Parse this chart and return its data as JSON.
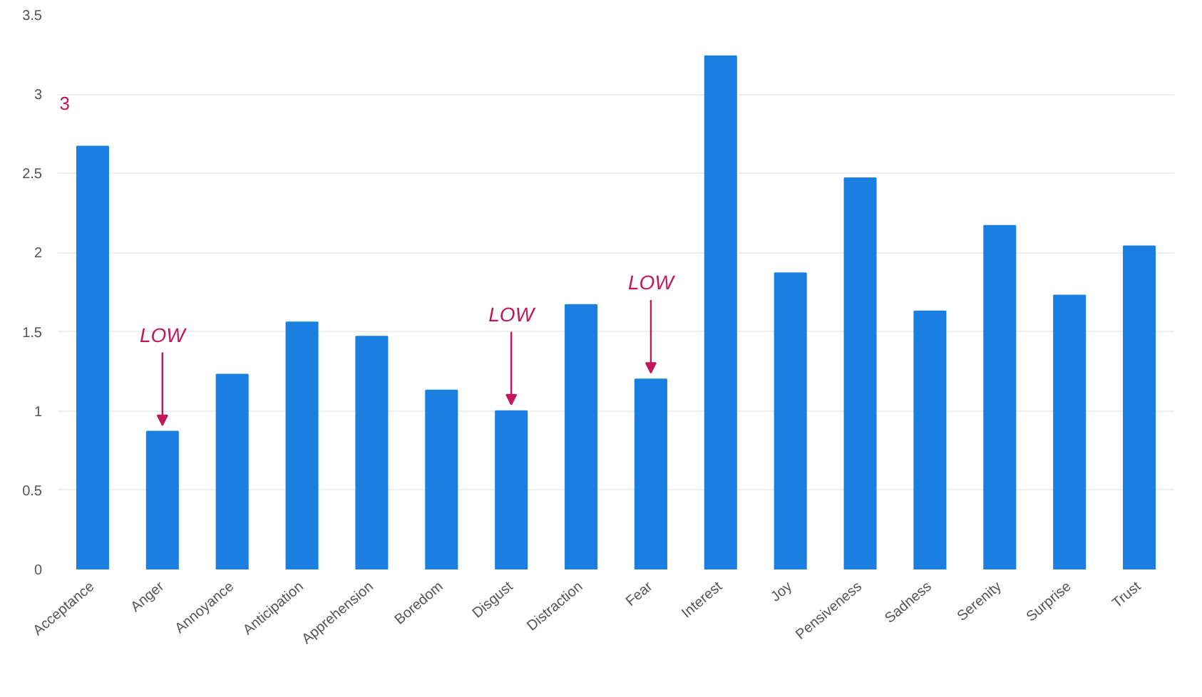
{
  "chart_data": {
    "type": "bar",
    "categories": [
      "Acceptance",
      "Anger",
      "Annoyance",
      "Anticipation",
      "Apprehension",
      "Boredom",
      "Disgust",
      "Distraction",
      "Fear",
      "Interest",
      "Joy",
      "Pensiveness",
      "Sadness",
      "Serenity",
      "Surprise",
      "Trust"
    ],
    "values": [
      2.67,
      0.87,
      1.23,
      1.56,
      1.47,
      1.13,
      1.0,
      1.67,
      1.2,
      3.24,
      1.87,
      2.47,
      1.63,
      2.17,
      1.73,
      2.04
    ],
    "color": "#1a7fe0",
    "ylim": [
      0,
      3.5
    ],
    "yticks": [
      0,
      0.5,
      1,
      1.5,
      2,
      2.5,
      3,
      3.5
    ],
    "grid": "y",
    "annotations": [
      {
        "text": "LOW",
        "x": "Anger",
        "y": 0.87
      },
      {
        "text": "LOW",
        "x": "Disgust",
        "y": 1.0
      },
      {
        "text": "LOW",
        "x": "Fear",
        "y": 1.2
      },
      "3"
    ]
  }
}
